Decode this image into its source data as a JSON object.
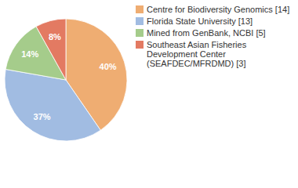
{
  "chart_data": {
    "type": "pie",
    "categories": [
      "Centre for Biodiversity Genomics [14]",
      "Florida State University [13]",
      "Mined from GenBank, NCBI [5]",
      "Southeast Asian Fisheries Development Center (SEAFDEC/MFRDMD) [3]"
    ],
    "values": [
      40,
      37,
      14,
      8
    ],
    "value_labels": [
      "40%",
      "37%",
      "14%",
      "8%"
    ],
    "colors": [
      "#efad72",
      "#a1bce2",
      "#a5cc8b",
      "#e37a62"
    ],
    "data_labels": true,
    "legend": "top-right"
  }
}
